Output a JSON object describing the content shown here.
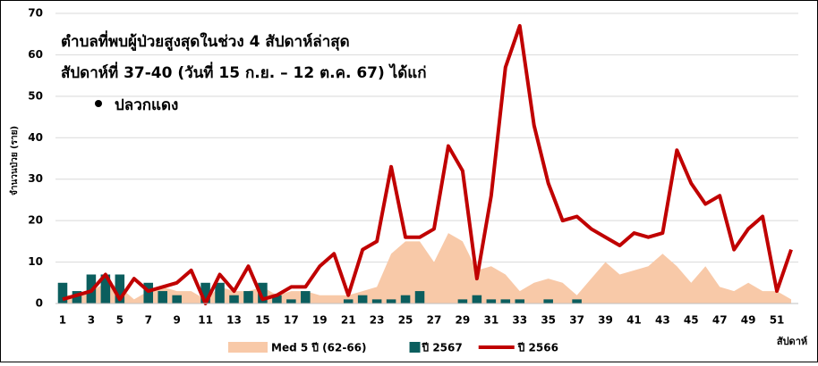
{
  "chart_data": {
    "type": "combo",
    "annotations": [
      "ตำบลที่พบผู้ป่วยสูงสุดในช่วง 4 สัปดาห์ล่าสุด",
      "สัปดาห์ที่ 37-40 (วันที่ 15 ก.ย. – 12 ต.ค. 67) ได้แก่",
      "ปลวกแดง"
    ],
    "y_label": "จำนวนป่วย (ราย)",
    "x_label": "สัปดาห์",
    "categories": [
      1,
      null,
      3,
      null,
      5,
      null,
      7,
      null,
      9,
      null,
      11,
      null,
      13,
      null,
      15,
      null,
      17,
      null,
      19,
      null,
      21,
      null,
      23,
      null,
      25,
      null,
      27,
      null,
      29,
      null,
      31,
      null,
      33,
      null,
      35,
      null,
      37,
      null,
      39,
      null,
      41,
      null,
      43,
      null,
      45,
      null,
      47,
      null,
      49,
      null,
      51,
      null
    ],
    "ylim": [
      0,
      70
    ],
    "yticks": [
      0,
      10,
      20,
      30,
      40,
      50,
      60,
      70
    ],
    "grid": true,
    "series": [
      {
        "name": "Med 5 ปี (62-66)",
        "type": "area",
        "color": "#f8c9a8",
        "values": [
          2,
          2,
          3,
          5,
          4,
          1,
          3,
          4,
          3,
          3,
          1,
          4,
          3,
          3,
          4,
          2,
          3,
          3,
          2,
          2,
          2,
          3,
          4,
          12,
          15,
          15,
          10,
          17,
          15,
          8,
          9,
          7,
          3,
          5,
          6,
          5,
          2,
          6,
          10,
          7,
          8,
          9,
          12,
          9,
          5,
          9,
          4,
          3,
          5,
          3,
          3,
          1
        ]
      },
      {
        "name": "ปี 2567",
        "type": "bar",
        "color": "#0b5e5e",
        "values": [
          5,
          3,
          7,
          7,
          7,
          0,
          5,
          3,
          2,
          0,
          5,
          5,
          2,
          3,
          5,
          2,
          1,
          3,
          0,
          0,
          1,
          2,
          1,
          1,
          2,
          3,
          0,
          0,
          1,
          2,
          1,
          1,
          1,
          0,
          1,
          0,
          1,
          null,
          null,
          null,
          null,
          null,
          null,
          null,
          null,
          null,
          null,
          null,
          null,
          null,
          null,
          null
        ]
      },
      {
        "name": "ปี 2566",
        "type": "line",
        "color": "#c00000",
        "values": [
          1,
          2,
          3,
          7,
          1,
          6,
          3,
          4,
          5,
          8,
          0,
          7,
          3,
          9,
          1,
          2,
          4,
          4,
          9,
          12,
          2,
          13,
          15,
          33,
          16,
          16,
          18,
          38,
          32,
          6,
          26,
          57,
          67,
          43,
          29,
          20,
          21,
          18,
          16,
          14,
          17,
          16,
          17,
          37,
          29,
          24,
          26,
          13,
          18,
          21,
          3,
          13
        ]
      }
    ]
  }
}
